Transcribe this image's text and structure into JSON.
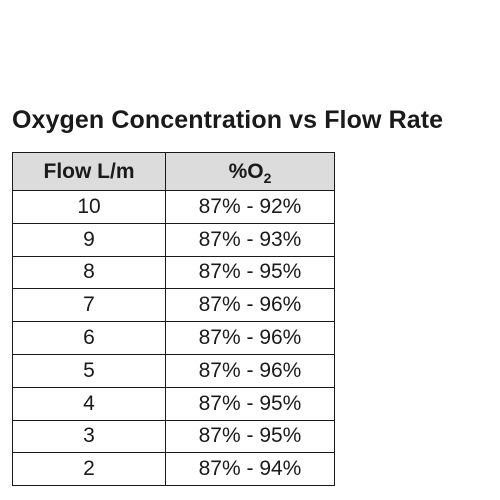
{
  "title": "Oxygen Concentration vs Flow Rate",
  "table": {
    "headers": {
      "flow": "Flow L/m",
      "o2_prefix": "%O",
      "o2_subscript": "2"
    },
    "rows": [
      {
        "flow": "10",
        "o2": "87% - 92%"
      },
      {
        "flow": "9",
        "o2": "87% - 93%"
      },
      {
        "flow": "8",
        "o2": "87% - 95%"
      },
      {
        "flow": "7",
        "o2": "87% - 96%"
      },
      {
        "flow": "6",
        "o2": "87% - 96%"
      },
      {
        "flow": "5",
        "o2": "87% - 96%"
      },
      {
        "flow": "4",
        "o2": "87% - 95%"
      },
      {
        "flow": "3",
        "o2": "87% - 95%"
      },
      {
        "flow": "2",
        "o2": "87% - 94%"
      }
    ]
  }
}
